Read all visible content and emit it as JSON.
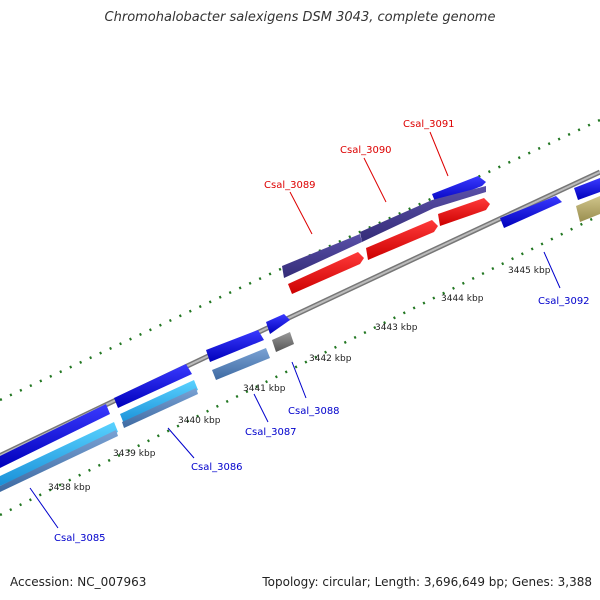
{
  "title": "Chromohalobacter salexigens DSM 3043, complete genome",
  "footer": {
    "accession": "Accession: NC_007963",
    "summary": "Topology: circular; Length: 3,696,649 bp; Genes: 3,388"
  },
  "ticks": [
    "3438 kbp",
    "3439 kbp",
    "3440 kbp",
    "3441 kbp",
    "3442 kbp",
    "3443 kbp",
    "3444 kbp",
    "3445 kbp"
  ],
  "gene_labels": {
    "csal_3085": "Csal_3085",
    "csal_3086": "Csal_3086",
    "csal_3087": "Csal_3087",
    "csal_3088": "Csal_3088",
    "csal_3089": "Csal_3089",
    "csal_3090": "Csal_3090",
    "csal_3091": "Csal_3091",
    "csal_3092": "Csal_3092"
  },
  "colors": {
    "forward_gene": "#1010e6",
    "reverse_gene": "#ee1111",
    "highlight_gene": "#4a3f96",
    "cyan_gene": "#22aaee",
    "steel_gene": "#5a82b4",
    "gray_gene": "#777777",
    "olive_gene": "#b8ad6a",
    "backbone": "#888888",
    "tick_dots": "#227722"
  }
}
